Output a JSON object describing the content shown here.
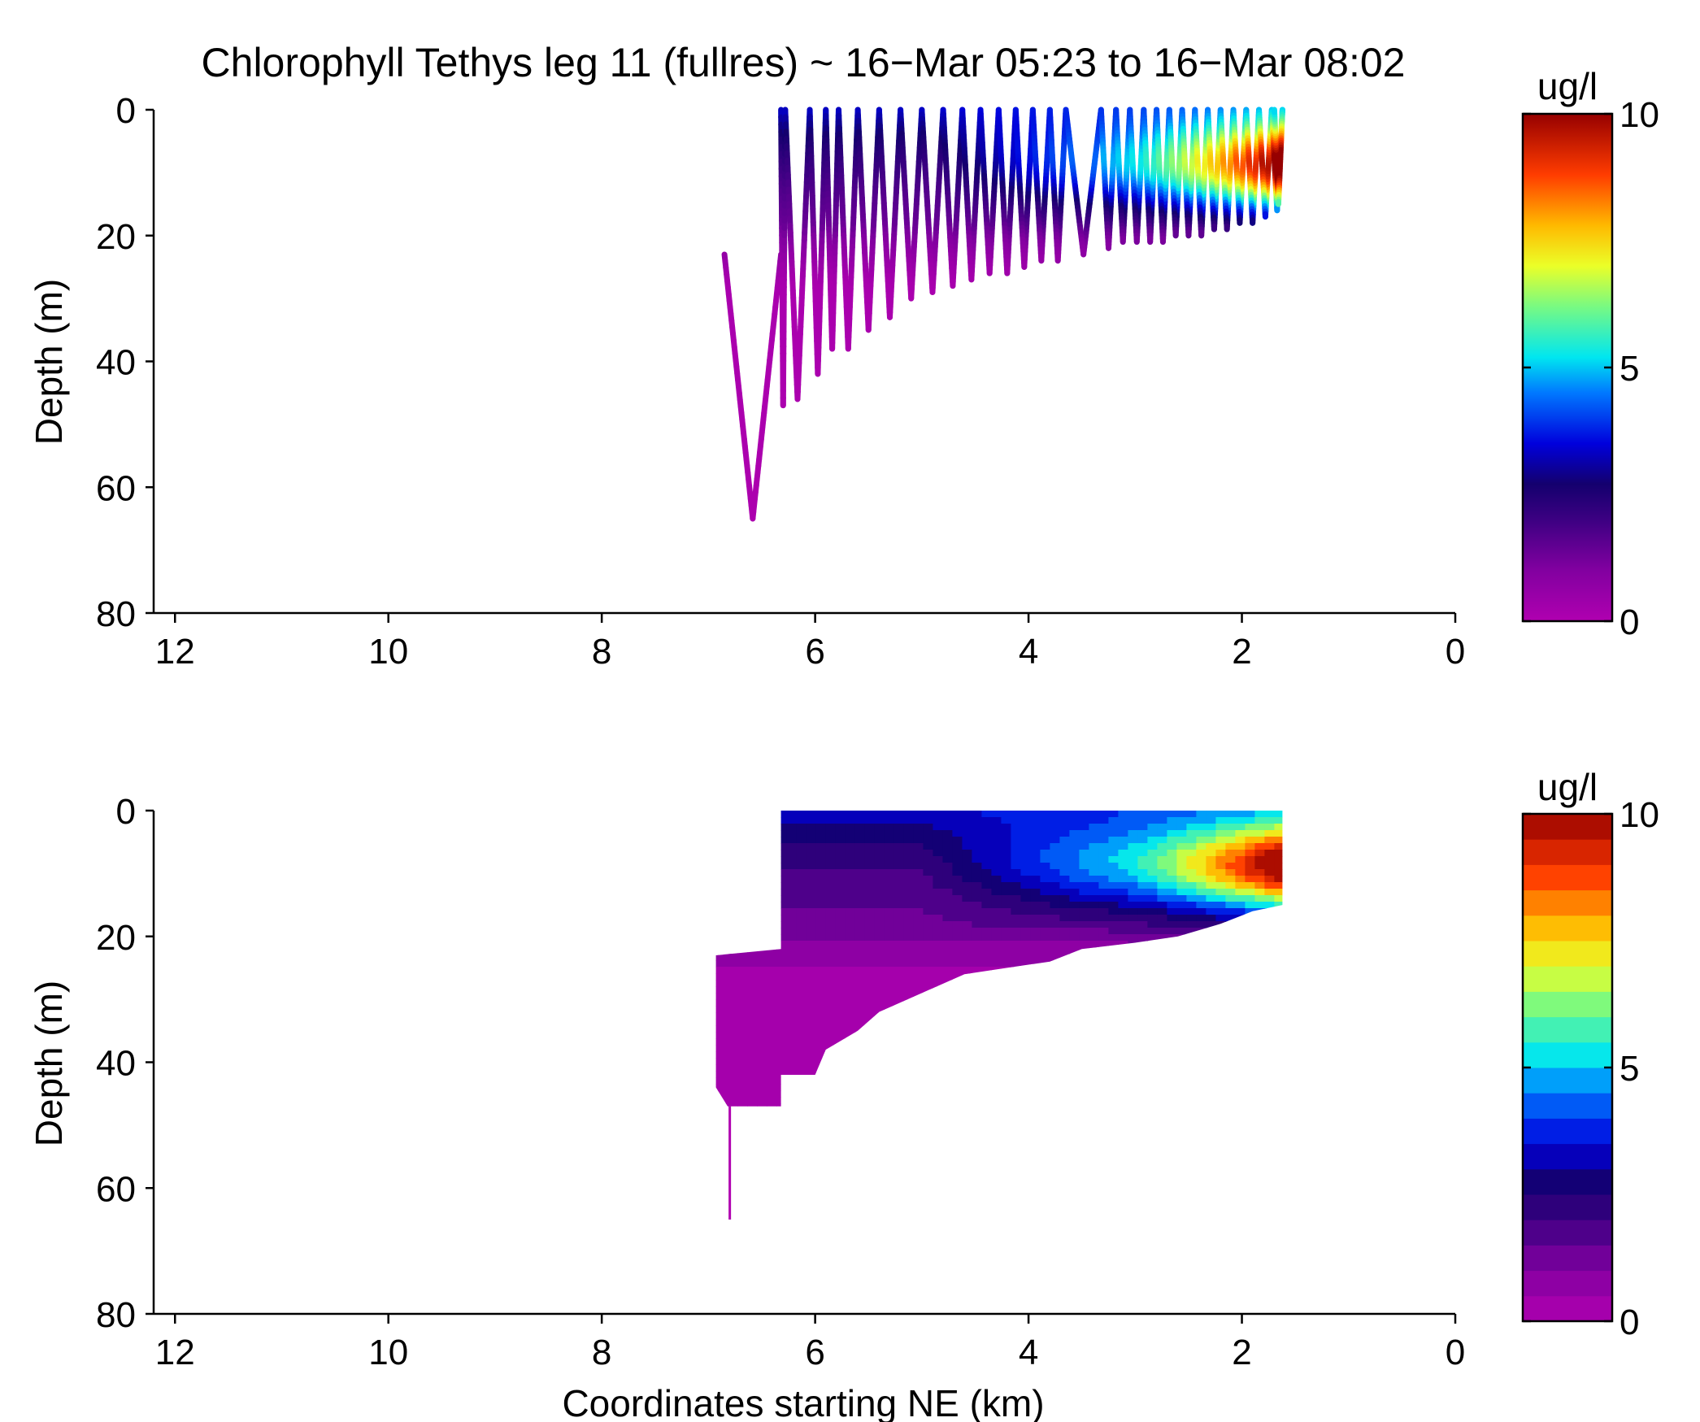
{
  "figure": {
    "title": "Chlorophyll Tethys leg 11 (fullres) ~ 16−Mar 05:23 to 16−Mar 08:02"
  },
  "chart_data": [
    {
      "type": "scatter",
      "title": "Chlorophyll Tethys leg 11 (fullres) ~ 16−Mar 05:23 to 16−Mar 08:02",
      "xlabel": "",
      "ylabel": "Depth (m)",
      "xlim": [
        12.2,
        0
      ],
      "ylim": [
        0,
        80
      ],
      "y_reversed": true,
      "x_ticks": [
        12,
        10,
        8,
        6,
        4,
        2,
        0
      ],
      "y_ticks": [
        0,
        20,
        40,
        60,
        80
      ],
      "x_tick_labels": [
        "12",
        "10",
        "8",
        "6",
        "4",
        "2",
        "0"
      ],
      "y_tick_labels": [
        "0",
        "20",
        "40",
        "60",
        "80"
      ],
      "colorbar": {
        "label": "ug/l",
        "range": [
          0,
          10
        ],
        "ticks": [
          0,
          5,
          10
        ],
        "tick_labels": [
          "0",
          "5",
          "10"
        ],
        "colormap": "jet-with-magenta-base",
        "continuous": true
      },
      "profiles": [
        {
          "x": 6.85,
          "max_depth": 65
        },
        {
          "x": 6.32,
          "max_depth": 47
        },
        {
          "x": 6.28,
          "max_depth": 46
        },
        {
          "x": 6.05,
          "max_depth": 42
        },
        {
          "x": 5.9,
          "max_depth": 38
        },
        {
          "x": 5.78,
          "max_depth": 38
        },
        {
          "x": 5.6,
          "max_depth": 35
        },
        {
          "x": 5.4,
          "max_depth": 33
        },
        {
          "x": 5.2,
          "max_depth": 30
        },
        {
          "x": 5.0,
          "max_depth": 29
        },
        {
          "x": 4.8,
          "max_depth": 28
        },
        {
          "x": 4.62,
          "max_depth": 27
        },
        {
          "x": 4.45,
          "max_depth": 26
        },
        {
          "x": 4.28,
          "max_depth": 26
        },
        {
          "x": 4.12,
          "max_depth": 25
        },
        {
          "x": 3.96,
          "max_depth": 24
        },
        {
          "x": 3.8,
          "max_depth": 24
        },
        {
          "x": 3.65,
          "max_depth": 23
        },
        {
          "x": 3.32,
          "max_depth": 22
        },
        {
          "x": 3.18,
          "max_depth": 21
        },
        {
          "x": 3.05,
          "max_depth": 21
        },
        {
          "x": 2.92,
          "max_depth": 21
        },
        {
          "x": 2.8,
          "max_depth": 21
        },
        {
          "x": 2.68,
          "max_depth": 20
        },
        {
          "x": 2.56,
          "max_depth": 20
        },
        {
          "x": 2.44,
          "max_depth": 20
        },
        {
          "x": 2.32,
          "max_depth": 19
        },
        {
          "x": 2.2,
          "max_depth": 19
        },
        {
          "x": 2.08,
          "max_depth": 18
        },
        {
          "x": 1.96,
          "max_depth": 18
        },
        {
          "x": 1.84,
          "max_depth": 17
        },
        {
          "x": 1.72,
          "max_depth": 16
        },
        {
          "x": 1.62,
          "max_depth": 15
        }
      ]
    },
    {
      "type": "heatmap",
      "title": "",
      "xlabel": "Coordinates starting NE (km)",
      "ylabel": "Depth (m)",
      "xlim": [
        12.2,
        0
      ],
      "ylim": [
        0,
        80
      ],
      "y_reversed": true,
      "x_ticks": [
        12,
        10,
        8,
        6,
        4,
        2,
        0
      ],
      "y_ticks": [
        0,
        20,
        40,
        60,
        80
      ],
      "x_tick_labels": [
        "12",
        "10",
        "8",
        "6",
        "4",
        "2",
        "0"
      ],
      "y_tick_labels": [
        "0",
        "20",
        "40",
        "60",
        "80"
      ],
      "colorbar": {
        "label": "ug/l",
        "range": [
          0,
          10
        ],
        "ticks": [
          0,
          5,
          10
        ],
        "tick_labels": [
          "0",
          "5",
          "10"
        ],
        "colormap": "jet-with-magenta-base",
        "continuous": false,
        "levels": 20
      },
      "bottom_boundary": [
        [
          6.93,
          23
        ],
        [
          6.93,
          44
        ],
        [
          6.82,
          47
        ],
        [
          6.32,
          47
        ],
        [
          6.32,
          42
        ],
        [
          6.0,
          42
        ],
        [
          5.9,
          38
        ],
        [
          5.6,
          35
        ],
        [
          5.4,
          32
        ],
        [
          5.0,
          29
        ],
        [
          4.6,
          26
        ],
        [
          4.2,
          25
        ],
        [
          3.8,
          24
        ],
        [
          3.5,
          22
        ],
        [
          3.0,
          21
        ],
        [
          2.6,
          20
        ],
        [
          2.2,
          18
        ],
        [
          1.9,
          16
        ],
        [
          1.62,
          15
        ]
      ],
      "top_boundary": [
        [
          6.93,
          23
        ],
        [
          6.32,
          22
        ],
        [
          6.32,
          0
        ],
        [
          1.62,
          0
        ]
      ]
    }
  ]
}
